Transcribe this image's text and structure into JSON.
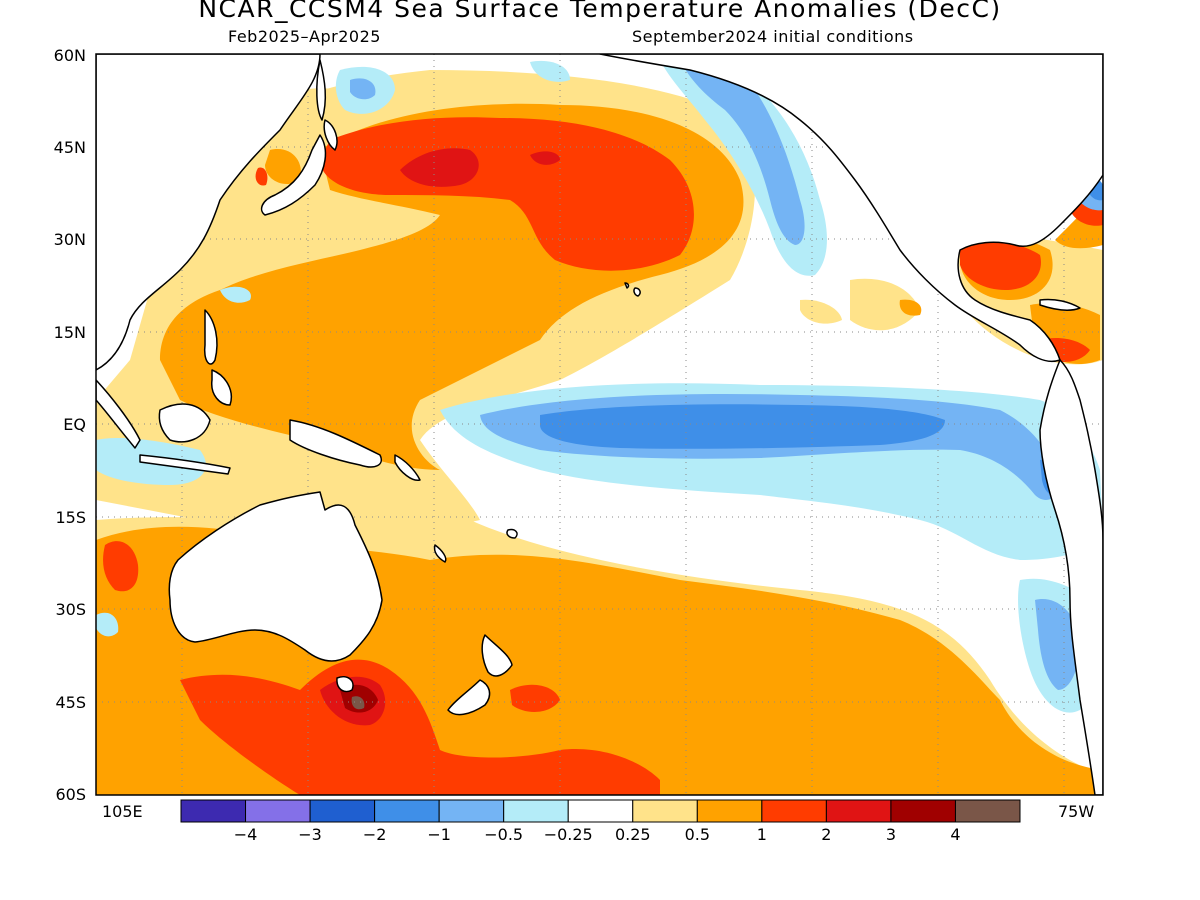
{
  "title": "NCAR_CCSM4 Sea Surface Temperature Anomalies (DecC)",
  "subtitle_left": "Feb2025–Apr2025",
  "subtitle_right": "September2024 initial conditions",
  "lat_labels": [
    "60N",
    "45N",
    "30N",
    "15N",
    "EQ",
    "15S",
    "30S",
    "45S",
    "60S"
  ],
  "lon_labels": {
    "left": "105E",
    "right": "75W"
  },
  "colorbar": {
    "colors": [
      "#3d2ab0",
      "#8470e8",
      "#1f5fd0",
      "#3f8fe8",
      "#74b4f4",
      "#b4ecf8",
      "#ffffff",
      "#ffe38a",
      "#ffa200",
      "#ff3c00",
      "#e01414",
      "#a00000",
      "#7a5648"
    ],
    "labels": [
      "−4",
      "−3",
      "−2",
      "−1",
      "−0.5",
      "−0.25",
      "0.25",
      "0.5",
      "1",
      "2",
      "3",
      "4"
    ]
  },
  "map": {
    "domain": {
      "lon_range": [
        "105E",
        "75W"
      ],
      "lat_range": [
        "60S",
        "60N"
      ]
    },
    "grid": "dotted",
    "highlights": [
      "Warm anomaly (+1 to +3) in the northwest/central North Pacific",
      "Cool anomaly (-1 to -2) along the central/eastern equatorial Pacific",
      "Warm anomaly (+2 to +4) southeast of Australia / Tasman Sea",
      "Cool anomaly (-0.5 to -1) along the North American west coast"
    ]
  }
}
